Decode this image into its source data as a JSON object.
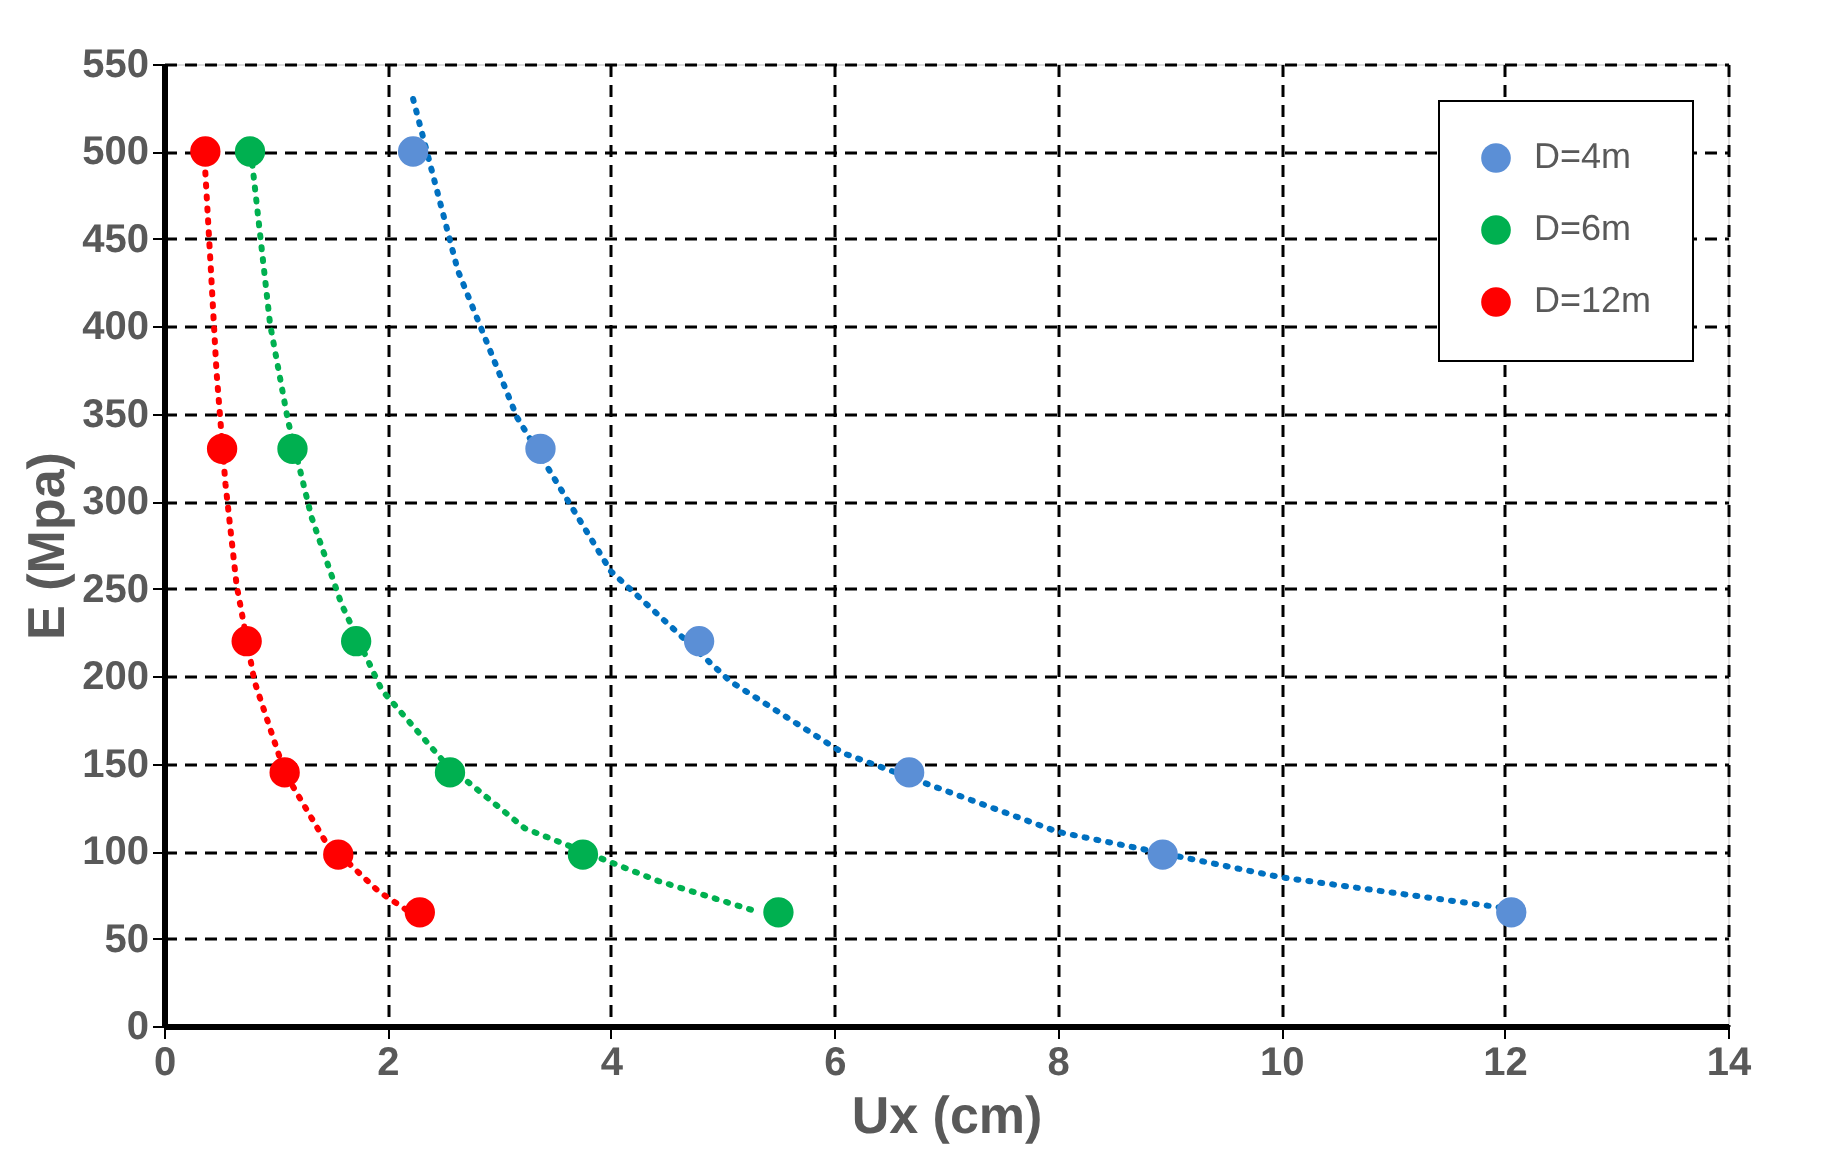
{
  "chart_data": {
    "type": "scatter",
    "xlabel": "Ux (cm)",
    "ylabel": "E (Mpa)",
    "xlim": [
      0,
      14
    ],
    "xticks": [
      0,
      2,
      4,
      6,
      8,
      10,
      12,
      14
    ],
    "ylim": [
      0,
      550
    ],
    "yticks": [
      0,
      50,
      100,
      150,
      200,
      250,
      300,
      350,
      400,
      450,
      500,
      550
    ],
    "grid": true,
    "legend": "top right",
    "series": [
      {
        "name": "D=4m",
        "marker": "circle",
        "color": "#5b8fd6",
        "x": [
          2.23,
          3.37,
          4.79,
          6.67,
          8.94,
          12.06
        ],
        "values": [
          500,
          330,
          220,
          145,
          98,
          65
        ]
      },
      {
        "name": "D=6m",
        "marker": "circle",
        "color": "#00b050",
        "x": [
          0.77,
          1.15,
          1.72,
          2.56,
          3.75,
          5.5
        ],
        "values": [
          500,
          330,
          220,
          145,
          98,
          65
        ]
      },
      {
        "name": "D=12m",
        "marker": "circle",
        "color": "#ff0000",
        "x": [
          0.37,
          0.52,
          0.74,
          1.08,
          1.56,
          2.29
        ],
        "values": [
          500,
          330,
          220,
          145,
          98,
          65
        ]
      },
      {
        "type": "line",
        "marker": "none",
        "line_style": "dotted",
        "color": "#0070c0",
        "x": [
          2.23,
          2.63,
          3.16,
          4.0,
          5.07,
          6.08,
          8.0,
          10.0,
          12.05
        ],
        "values": [
          530,
          432,
          348,
          260,
          197,
          156,
          111,
          85,
          67
        ]
      },
      {
        "type": "line",
        "marker": "none",
        "line_style": "dotted",
        "color": "#00b050",
        "x": [
          0.79,
          0.95,
          1.11,
          1.32,
          1.59,
          1.95,
          2.52,
          3.23,
          4.42,
          5.28
        ],
        "values": [
          493,
          401,
          346,
          291,
          241,
          192,
          150,
          113,
          83,
          66
        ]
      },
      {
        "type": "line",
        "marker": "none",
        "line_style": "dotted",
        "color": "#ff0000",
        "x": [
          0.37,
          0.42,
          0.47,
          0.55,
          0.65,
          0.81,
          1.08,
          1.44,
          1.92,
          2.18
        ],
        "values": [
          488,
          432,
          374,
          310,
          252,
          197,
          145,
          106,
          77,
          66
        ]
      }
    ]
  }
}
